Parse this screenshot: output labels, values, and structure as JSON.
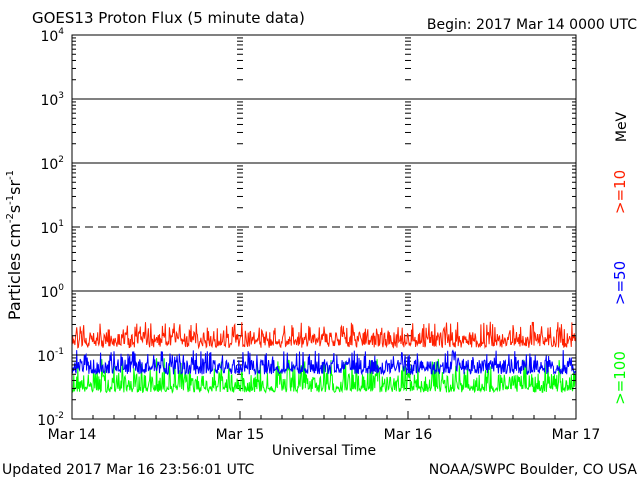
{
  "header": {
    "title": "GOES13 Proton Flux (5 minute data)",
    "begin": "Begin: 2017 Mar 14 0000 UTC"
  },
  "footer": {
    "updated": "Updated 2017 Mar 16 23:56:01 UTC",
    "credit": "NOAA/SWPC Boulder, CO USA"
  },
  "chart_data": {
    "type": "line",
    "title": "GOES13 Proton Flux (5 minute data)",
    "xlabel": "Universal Time",
    "ylabel": "Particles cm⁻²s⁻¹sr⁻¹",
    "yscale": "log",
    "ylim": [
      0.01,
      10000
    ],
    "y_ticks": [
      {
        "base": "10",
        "exp": "-2",
        "value": 0.01
      },
      {
        "base": "10",
        "exp": "-1",
        "value": 0.1
      },
      {
        "base": "10",
        "exp": "0",
        "value": 1
      },
      {
        "base": "10",
        "exp": "1",
        "value": 10
      },
      {
        "base": "10",
        "exp": "2",
        "value": 100
      },
      {
        "base": "10",
        "exp": "3",
        "value": 1000
      },
      {
        "base": "10",
        "exp": "4",
        "value": 10000
      }
    ],
    "x_ticks": [
      "Mar 14",
      "Mar 15",
      "Mar 16",
      "Mar 17"
    ],
    "x_range_days": [
      0,
      3
    ],
    "thresholds": [
      {
        "value": 1000,
        "style": "solid"
      },
      {
        "value": 100,
        "style": "solid"
      },
      {
        "value": 10,
        "style": "dashed"
      },
      {
        "value": 1,
        "style": "solid"
      },
      {
        "value": 0.1,
        "style": "solid"
      }
    ],
    "energy_unit": "MeV",
    "series": [
      {
        "name": ">=10",
        "color": "#ff2000",
        "base": 0.17,
        "low": 0.13,
        "high": 0.33
      },
      {
        "name": ">=50",
        "color": "#0000ff",
        "base": 0.063,
        "low": 0.05,
        "high": 0.12
      },
      {
        "name": ">=100",
        "color": "#00ff00",
        "base": 0.032,
        "low": 0.026,
        "high": 0.09
      }
    ]
  }
}
